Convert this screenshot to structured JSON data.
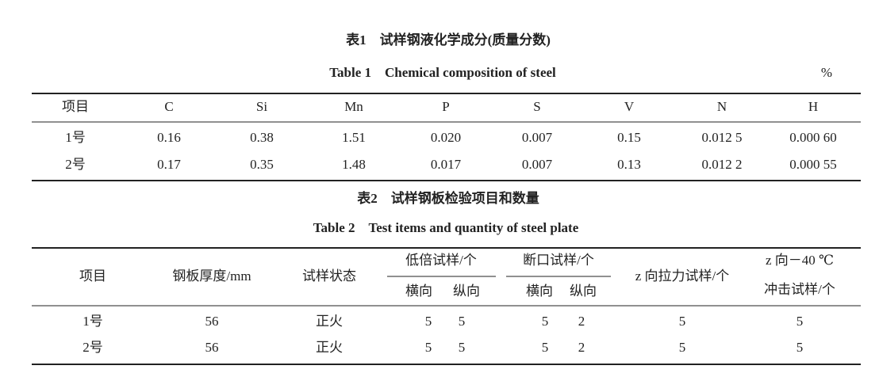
{
  "table1": {
    "title_cn": "表1　试样钢液化学成分(质量分数)",
    "title_en": "Table 1　Chemical composition of steel",
    "unit": "%",
    "header": [
      "项目",
      "C",
      "Si",
      "Mn",
      "P",
      "S",
      "V",
      "N",
      "H"
    ],
    "rows": [
      [
        "1号",
        "0.16",
        "0.38",
        "1.51",
        "0.020",
        "0.007",
        "0.15",
        "0.012 5",
        "0.000 60"
      ],
      [
        "2号",
        "0.17",
        "0.35",
        "1.48",
        "0.017",
        "0.007",
        "0.13",
        "0.012 2",
        "0.000 55"
      ]
    ]
  },
  "table2": {
    "title_cn": "表2　试样钢板检验项目和数量",
    "title_en": "Table 2　Test items and quantity of steel plate",
    "header": {
      "item": "项目",
      "thickness": "钢板厚度/mm",
      "state": "试样状态",
      "macro": {
        "label": "低倍试样/个",
        "sub": [
          "横向",
          "纵向"
        ]
      },
      "fracture": {
        "label": "断口试样/个",
        "sub": [
          "横向",
          "纵向"
        ]
      },
      "tensile": "z 向拉力试样/个",
      "impact": [
        "z 向－40 ℃",
        "冲击试样/个"
      ]
    },
    "rows": [
      [
        "1号",
        "56",
        "正火",
        "5",
        "5",
        "5",
        "2",
        "5",
        "5"
      ],
      [
        "2号",
        "56",
        "正火",
        "5",
        "5",
        "5",
        "2",
        "5",
        "5"
      ]
    ]
  }
}
